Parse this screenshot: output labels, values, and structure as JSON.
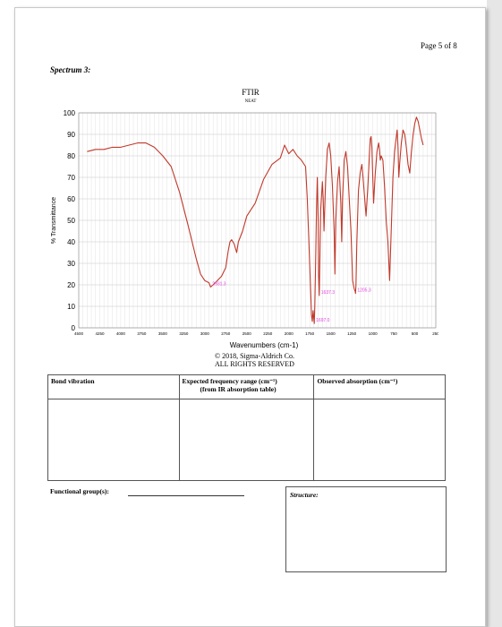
{
  "page_label": "Page 5 of 8",
  "spectrum_title": "Spectrum 3:",
  "copyright": {
    "line1": "© 2018, Sigma-Aldrich Co.",
    "line2": "ALL RIGHTS RESERVED"
  },
  "table": {
    "col1_header": "Bond vibration",
    "col2_header": "Expected frequency range (cm⁻¹)",
    "col2_sub": "(from IR absorption table)",
    "col3_header": "Observed absorption (cm⁻¹)"
  },
  "functional_group_label": "Functional group(s):",
  "structure_label": "Structure:",
  "colors": {
    "spectrum": "#c0392b",
    "peak_label": "#e040e0",
    "grid": "#c8c8c8"
  },
  "chart_data": {
    "type": "line",
    "title": "FTIR",
    "subtitle": "NEAT",
    "xlabel": "Wavenumbers (cm-1)",
    "ylabel": "% Transmittance",
    "xlim": [
      4500,
      250
    ],
    "ylim": [
      0,
      100
    ],
    "x_ticks": [
      4500,
      4250,
      4000,
      3750,
      3500,
      3250,
      3000,
      2750,
      2500,
      2250,
      2000,
      1750,
      1500,
      1250,
      1000,
      750,
      500,
      250
    ],
    "y_ticks": [
      0,
      10,
      20,
      30,
      40,
      50,
      60,
      70,
      80,
      90,
      100
    ],
    "grid": true,
    "series": [
      {
        "x": [
          4400,
          4300,
          4200,
          4100,
          4000,
          3900,
          3800,
          3700,
          3600,
          3500,
          3400,
          3300,
          3200,
          3100,
          3050,
          3000,
          2950,
          2931,
          2900,
          2850,
          2800,
          2750,
          2720,
          2700,
          2680,
          2650,
          2620,
          2600,
          2550,
          2500,
          2400,
          2300,
          2200,
          2100,
          2050,
          2000,
          1950,
          1900,
          1850,
          1800,
          1780,
          1760,
          1740,
          1730,
          1720,
          1710,
          1697,
          1690,
          1680,
          1670,
          1660,
          1650,
          1645,
          1637,
          1630,
          1620,
          1600,
          1590,
          1580,
          1560,
          1540,
          1520,
          1500,
          1480,
          1460,
          1450,
          1440,
          1420,
          1400,
          1380,
          1370,
          1360,
          1340,
          1320,
          1300,
          1280,
          1260,
          1240,
          1220,
          1210,
          1205,
          1200,
          1190,
          1170,
          1150,
          1130,
          1120,
          1100,
          1080,
          1060,
          1040,
          1030,
          1020,
          1010,
          1000,
          990,
          970,
          950,
          930,
          920,
          910,
          900,
          880,
          860,
          840,
          820,
          800,
          780,
          760,
          740,
          720,
          710,
          700,
          690,
          680,
          660,
          640,
          620,
          600,
          580,
          560,
          540,
          520,
          500,
          480,
          460,
          440,
          420,
          400
        ],
        "y": [
          82,
          83,
          83,
          84,
          84,
          85,
          86,
          86,
          84,
          80,
          75,
          63,
          48,
          32,
          25,
          22,
          21,
          19,
          20,
          22,
          24,
          28,
          36,
          40,
          41,
          39,
          35,
          40,
          45,
          52,
          58,
          69,
          76,
          79,
          85,
          81,
          83,
          80,
          78,
          75,
          60,
          40,
          18,
          6,
          3,
          8,
          2,
          10,
          30,
          55,
          70,
          50,
          25,
          15,
          30,
          55,
          68,
          60,
          45,
          70,
          83,
          86,
          80,
          66,
          45,
          25,
          50,
          68,
          75,
          58,
          40,
          60,
          78,
          82,
          75,
          60,
          45,
          22,
          18,
          17,
          16,
          20,
          40,
          64,
          72,
          76,
          72,
          62,
          52,
          65,
          80,
          88,
          89,
          84,
          70,
          58,
          72,
          82,
          86,
          83,
          78,
          80,
          78,
          66,
          50,
          40,
          22,
          45,
          70,
          82,
          89,
          92,
          84,
          70,
          76,
          86,
          92,
          90,
          84,
          76,
          72,
          82,
          90,
          95,
          98,
          96,
          92,
          88,
          85
        ]
      }
    ],
    "annotations": [
      {
        "x": 2931,
        "y": 19,
        "text": "2931.3"
      },
      {
        "x": 1637,
        "y": 15,
        "text": "1637.3"
      },
      {
        "x": 1205,
        "y": 16,
        "text": "1205.3"
      },
      {
        "x": 1697,
        "y": 2,
        "text": "1697.0"
      }
    ]
  }
}
